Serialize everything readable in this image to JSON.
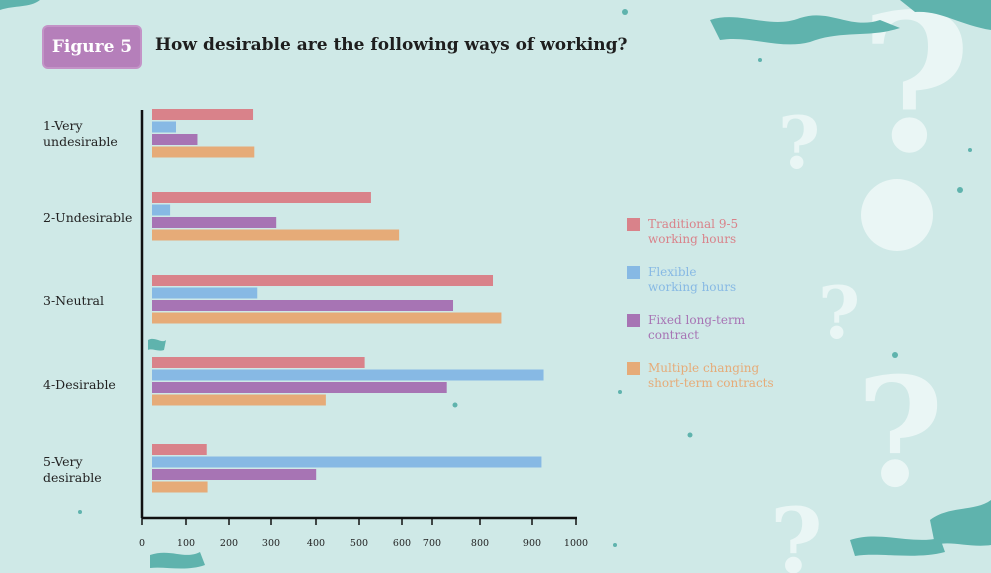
{
  "figure_badge": "Figure 5",
  "title": "How desirable are the following ways of working?",
  "colors": {
    "background": "#cfe9e7",
    "badge": "#b57fba",
    "series": [
      "#d9828a",
      "#87b9e4",
      "#a774b4",
      "#e6ab78"
    ],
    "decoration": "#5fb3ad"
  },
  "chart_data": {
    "type": "bar",
    "orientation": "horizontal",
    "title": "How desirable are the following ways of working?",
    "categories": [
      "1-Very\nundesirable",
      "2-Undesirable",
      "3-Neutral",
      "4-Desirable",
      "5-Very\ndesirable"
    ],
    "series": [
      {
        "name": "Traditional 9-5\nworking hours",
        "values": [
          240,
          520,
          810,
          505,
          130
        ]
      },
      {
        "name": "Flexible\nworking hours",
        "values": [
          57,
          43,
          250,
          930,
          925
        ]
      },
      {
        "name": "Fixed long-term\ncontract",
        "values": [
          108,
          295,
          715,
          700,
          390
        ]
      },
      {
        "name": "Multiple changing\nshort-term contracts",
        "values": [
          243,
          587,
          830,
          413,
          132
        ]
      }
    ],
    "xlim": [
      0,
      1000
    ],
    "xticks": [
      "0",
      "100",
      "200",
      "300",
      "400",
      "500",
      "600",
      "700",
      "800",
      "900",
      "1000"
    ],
    "xlabel": "",
    "ylabel": "",
    "grid": false,
    "legend_position": "right"
  }
}
